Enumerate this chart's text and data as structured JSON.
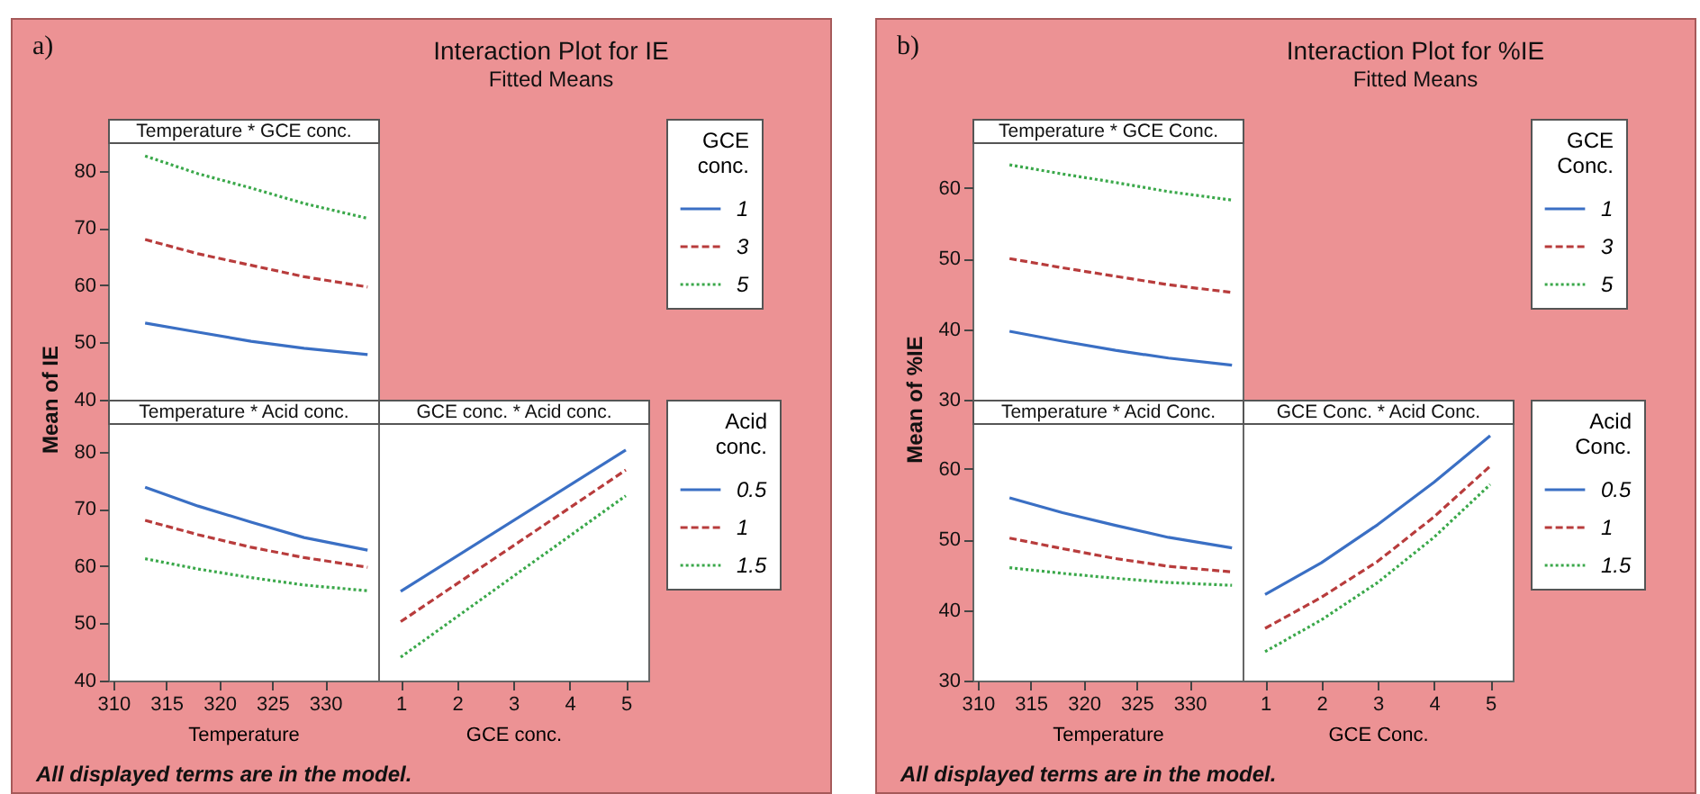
{
  "chart_data": [
    {
      "type": "line",
      "title": "Temperature * GCE conc.",
      "annotations": [
        "a)",
        "Interaction Plot for IE",
        "Fitted Means",
        "All displayed terms are in the model."
      ],
      "ylabel": "Mean of IE",
      "legend_title": "GCE conc.",
      "legend": "right",
      "xlim": [
        309.5,
        335
      ],
      "xticks": [
        310,
        315,
        320,
        325,
        330
      ],
      "ylim": [
        40,
        85
      ],
      "yticks": [
        40,
        50,
        60,
        70,
        80
      ],
      "tick_labels": "y",
      "x": [
        313,
        318,
        323,
        328,
        334
      ],
      "series": [
        {
          "name": "1",
          "color": "#3a6fc4",
          "line_style": "solid",
          "values": [
            53.4,
            51.8,
            50.2,
            49,
            47.9
          ]
        },
        {
          "name": "3",
          "color": "#b83c3c",
          "line_style": "dashed",
          "values": [
            68,
            65.5,
            63.5,
            61.5,
            59.7
          ]
        },
        {
          "name": "5",
          "color": "#3aa84a",
          "line_style": "dotted",
          "values": [
            82.6,
            79.5,
            77,
            74.3,
            71.7
          ]
        }
      ]
    },
    {
      "type": "line",
      "title": "Temperature * Acid conc.",
      "xlabel": "Temperature",
      "xlim": [
        309.5,
        335
      ],
      "xticks": [
        310,
        315,
        320,
        325,
        330
      ],
      "ylim": [
        40,
        85
      ],
      "yticks": [
        40,
        50,
        60,
        70,
        80
      ],
      "x": [
        313,
        318,
        323,
        328,
        334
      ],
      "series": [
        {
          "color": "#3a6fc4",
          "line_style": "solid",
          "values": [
            73.8,
            70.5,
            67.7,
            65,
            62.8
          ]
        },
        {
          "color": "#b83c3c",
          "line_style": "dashed",
          "values": [
            68,
            65.5,
            63.3,
            61.5,
            59.8
          ]
        },
        {
          "color": "#3aa84a",
          "line_style": "dotted",
          "values": [
            61.3,
            59.5,
            58,
            56.7,
            55.7
          ]
        }
      ]
    },
    {
      "type": "line",
      "title": "GCE conc. * Acid conc.",
      "xlabel": "GCE conc.",
      "legend_title": "Acid conc.",
      "legend": "right",
      "xlim": [
        0.6,
        5.4
      ],
      "xticks": [
        1,
        2,
        3,
        4,
        5
      ],
      "ylim": [
        40,
        85
      ],
      "yticks": [
        40,
        50,
        60,
        70,
        80
      ],
      "tick_labels": "x",
      "x": [
        1,
        5
      ],
      "series": [
        {
          "name": "0.5",
          "color": "#3a6fc4",
          "line_style": "solid",
          "values": [
            55.6,
            80.3
          ]
        },
        {
          "name": "1",
          "color": "#b83c3c",
          "line_style": "dashed",
          "values": [
            50.3,
            76.8
          ]
        },
        {
          "name": "1.5",
          "color": "#3aa84a",
          "line_style": "dotted",
          "values": [
            44.1,
            72.3
          ]
        }
      ]
    },
    {
      "type": "line",
      "title": "Temperature * GCE Conc.",
      "annotations": [
        "b)",
        "Interaction Plot for %IE",
        "Fitted Means",
        "All displayed terms are in the model."
      ],
      "ylabel": "Mean of %IE",
      "legend_title": "GCE Conc.",
      "legend": "right",
      "xlim": [
        309.5,
        335
      ],
      "xticks": [
        310,
        315,
        320,
        325,
        330
      ],
      "ylim": [
        30,
        66.5
      ],
      "yticks": [
        30,
        40,
        50,
        60
      ],
      "tick_labels": "y",
      "x": [
        313,
        318,
        323,
        328,
        334
      ],
      "series": [
        {
          "name": "1",
          "color": "#3a6fc4",
          "line_style": "solid",
          "values": [
            39.7,
            38.3,
            37,
            35.9,
            34.9
          ]
        },
        {
          "name": "3",
          "color": "#b83c3c",
          "line_style": "dashed",
          "values": [
            50,
            48.7,
            47.5,
            46.3,
            45.2
          ]
        },
        {
          "name": "5",
          "color": "#3aa84a",
          "line_style": "dotted",
          "values": [
            63.3,
            62,
            60.8,
            59.5,
            58.3
          ]
        }
      ]
    },
    {
      "type": "line",
      "title": "Temperature * Acid Conc.",
      "xlabel": "Temperature",
      "xlim": [
        309.5,
        335
      ],
      "xticks": [
        310,
        315,
        320,
        325,
        330
      ],
      "ylim": [
        30,
        66.5
      ],
      "yticks": [
        30,
        40,
        50,
        60
      ],
      "x": [
        313,
        318,
        323,
        328,
        334
      ],
      "series": [
        {
          "color": "#3a6fc4",
          "line_style": "solid",
          "values": [
            55.9,
            53.8,
            52,
            50.3,
            48.8
          ]
        },
        {
          "color": "#b83c3c",
          "line_style": "dashed",
          "values": [
            50.2,
            48.7,
            47.3,
            46.2,
            45.4
          ]
        },
        {
          "color": "#3aa84a",
          "line_style": "dotted",
          "values": [
            46,
            45.2,
            44.5,
            43.9,
            43.5
          ]
        }
      ]
    },
    {
      "type": "line",
      "title": "GCE Conc. * Acid Conc.",
      "xlabel": "GCE Conc.",
      "legend_title": "Acid Conc.",
      "legend": "right",
      "xlim": [
        0.6,
        5.4
      ],
      "xticks": [
        1,
        2,
        3,
        4,
        5
      ],
      "ylim": [
        30,
        66.5
      ],
      "yticks": [
        30,
        40,
        50,
        60
      ],
      "tick_labels": "x",
      "x": [
        1,
        2,
        3,
        4,
        5
      ],
      "series": [
        {
          "name": "0.5",
          "color": "#3a6fc4",
          "line_style": "solid",
          "values": [
            42.2,
            46.7,
            52.1,
            58.1,
            64.7
          ]
        },
        {
          "name": "1",
          "color": "#b83c3c",
          "line_style": "dashed",
          "values": [
            37.4,
            41.8,
            46.9,
            53.2,
            60.4
          ]
        },
        {
          "name": "1.5",
          "color": "#3aa84a",
          "line_style": "dotted",
          "values": [
            34.1,
            38.6,
            43.9,
            50.3,
            57.8
          ]
        }
      ]
    }
  ]
}
